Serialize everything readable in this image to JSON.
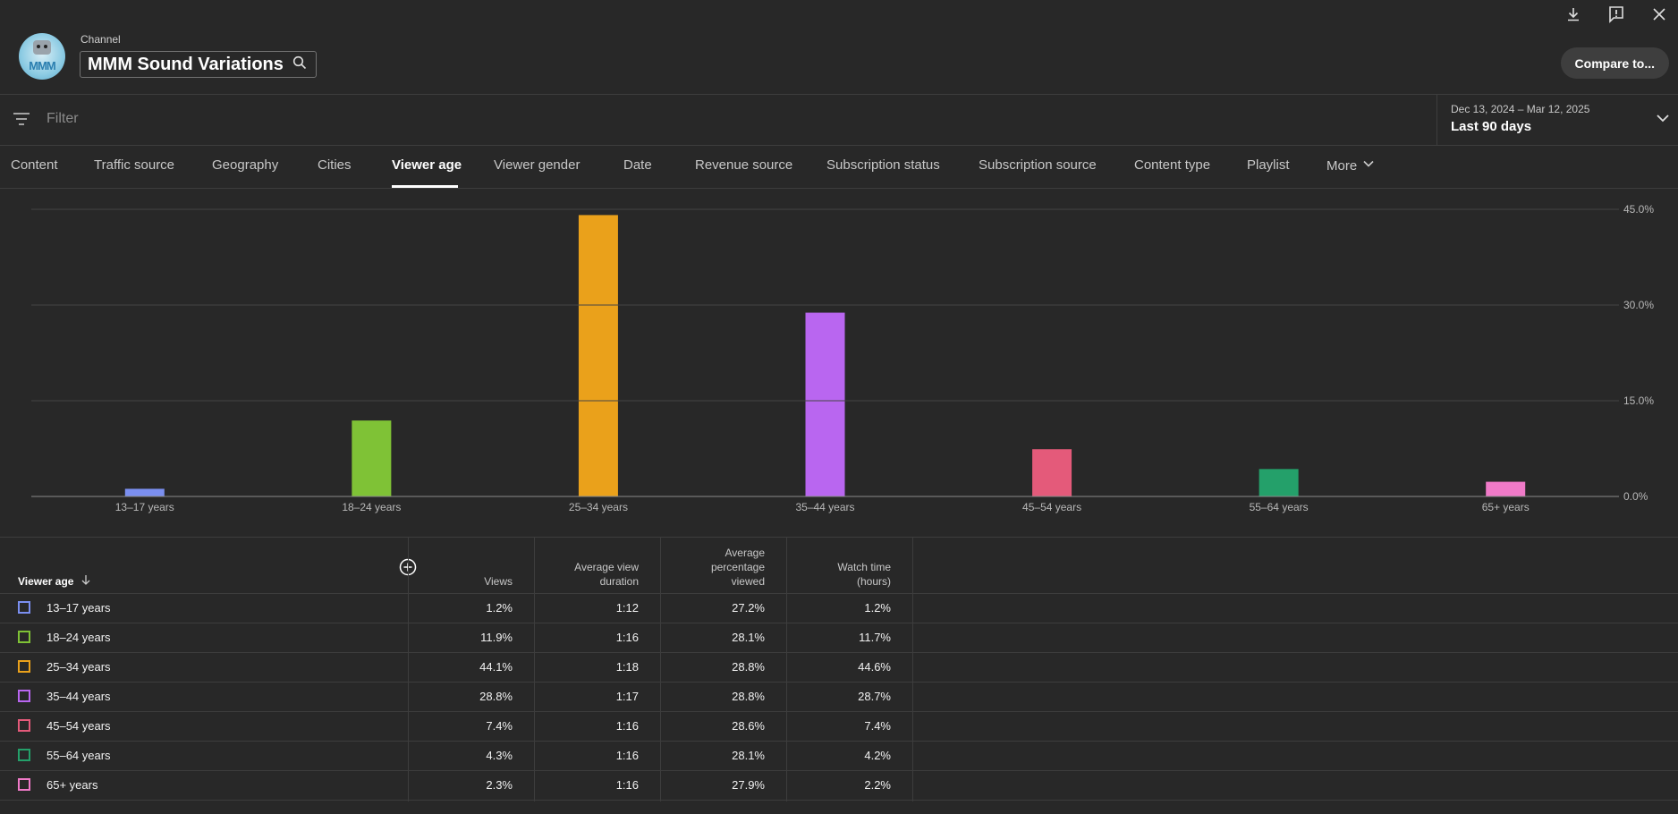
{
  "header": {
    "channel_label": "Channel",
    "channel_name": "MMM Sound Variations",
    "avatar_text": "MMM",
    "compare_label": "Compare to..."
  },
  "filter": {
    "placeholder": "Filter",
    "date_range": "Dec 13, 2024 – Mar 12, 2025",
    "date_preset": "Last 90 days"
  },
  "tabs": [
    {
      "label": "Content"
    },
    {
      "label": "Traffic source"
    },
    {
      "label": "Geography"
    },
    {
      "label": "Cities"
    },
    {
      "label": "Viewer age"
    },
    {
      "label": "Viewer gender"
    },
    {
      "label": "Date"
    },
    {
      "label": "Revenue source"
    },
    {
      "label": "Subscription status"
    },
    {
      "label": "Subscription source"
    },
    {
      "label": "Content type"
    },
    {
      "label": "Playlist"
    },
    {
      "label": "More"
    }
  ],
  "chart_data": {
    "type": "bar",
    "categories": [
      "13–17 years",
      "18–24 years",
      "25–34 years",
      "35–44 years",
      "45–54 years",
      "55–64 years",
      "65+ years"
    ],
    "values": [
      1.2,
      11.9,
      44.1,
      28.8,
      7.4,
      4.3,
      2.3
    ],
    "colors": [
      "#7b8ff0",
      "#7fc236",
      "#eaa11b",
      "#b966f0",
      "#e45a7a",
      "#24a06a",
      "#f07ac8"
    ],
    "yticks": [
      "0.0%",
      "15.0%",
      "30.0%",
      "45.0%"
    ],
    "ylim": [
      0,
      45
    ],
    "grid": true
  },
  "table": {
    "headers": {
      "dimension": "Viewer age",
      "views": "Views",
      "avg_view_duration": [
        "Average view",
        "duration"
      ],
      "avg_pct_viewed": [
        "Average",
        "percentage",
        "viewed"
      ],
      "watch_time": [
        "Watch time",
        "(hours)"
      ]
    },
    "rows": [
      {
        "age": "13–17 years",
        "views": "1.2%",
        "avd": "1:12",
        "apv": "27.2%",
        "wt": "1.2%",
        "color": "#7b8ff0"
      },
      {
        "age": "18–24 years",
        "views": "11.9%",
        "avd": "1:16",
        "apv": "28.1%",
        "wt": "11.7%",
        "color": "#7fc236"
      },
      {
        "age": "25–34 years",
        "views": "44.1%",
        "avd": "1:18",
        "apv": "28.8%",
        "wt": "44.6%",
        "color": "#eaa11b"
      },
      {
        "age": "35–44 years",
        "views": "28.8%",
        "avd": "1:17",
        "apv": "28.8%",
        "wt": "28.7%",
        "color": "#b966f0"
      },
      {
        "age": "45–54 years",
        "views": "7.4%",
        "avd": "1:16",
        "apv": "28.6%",
        "wt": "7.4%",
        "color": "#e45a7a"
      },
      {
        "age": "55–64 years",
        "views": "4.3%",
        "avd": "1:16",
        "apv": "28.1%",
        "wt": "4.2%",
        "color": "#24a06a"
      },
      {
        "age": "65+ years",
        "views": "2.3%",
        "avd": "1:16",
        "apv": "27.9%",
        "wt": "2.2%",
        "color": "#f07ac8"
      }
    ]
  }
}
